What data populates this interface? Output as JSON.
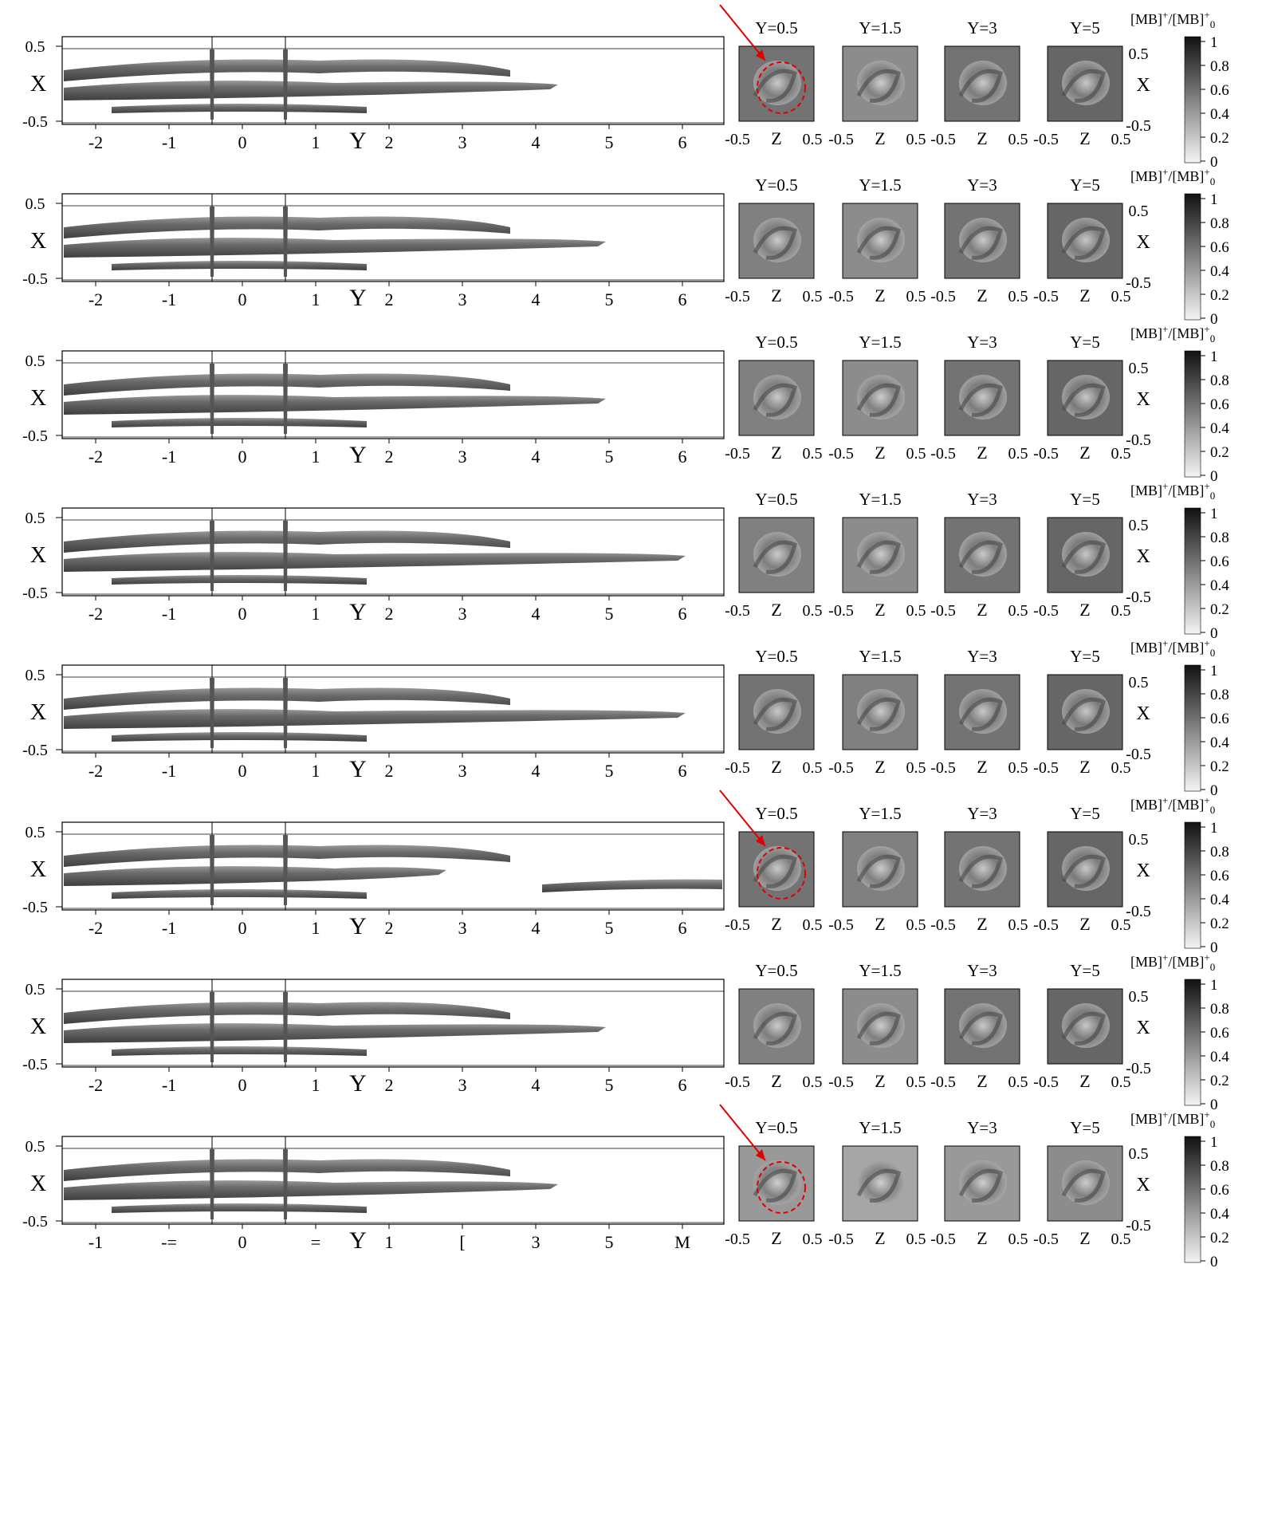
{
  "figure": {
    "row_panel_axis": {
      "x_axis_label": "Y",
      "y_axis_label": "X",
      "y_ticks": [
        "0.5",
        "-0.5"
      ]
    },
    "slices": {
      "x_axis_label": "Z",
      "x_ticks": [
        "-0.5",
        "0.5"
      ],
      "right_axis_label": "X",
      "right_ticks": [
        "0.5",
        "-0.5"
      ],
      "titles": [
        "Y=0.5",
        "Y=1.5",
        "Y=3",
        "Y=5"
      ]
    },
    "colorbar": {
      "ticks": [
        "1",
        "0.8",
        "0.6",
        "0.4",
        "0.2",
        "0"
      ],
      "label_parts": {
        "a": "[MB]",
        "sup_a": "+",
        "slash": "/[MB]",
        "sup_b": "+",
        "sub_b": "0"
      }
    },
    "row_x_ticks": {
      "standard": [
        "-2",
        "-1",
        "0",
        "1",
        "2",
        "3",
        "4",
        "5",
        "6"
      ],
      "last": [
        "-1",
        "-=",
        "0",
        "=",
        "1",
        "[",
        "3",
        "5",
        "M"
      ]
    },
    "annotations": {
      "arrow_color": "#e00000",
      "circle_color": "#e00000"
    },
    "rows": [
      {
        "id": "row-1",
        "extent": "short",
        "slice_gray": [
          0.55,
          0.45,
          0.55,
          0.6
        ],
        "arrow": true
      },
      {
        "id": "row-2",
        "extent": "medium",
        "slice_gray": [
          0.5,
          0.45,
          0.55,
          0.6
        ]
      },
      {
        "id": "row-3",
        "extent": "medium",
        "slice_gray": [
          0.5,
          0.45,
          0.55,
          0.6
        ]
      },
      {
        "id": "row-4",
        "extent": "long",
        "slice_gray": [
          0.5,
          0.45,
          0.55,
          0.6
        ]
      },
      {
        "id": "row-5",
        "extent": "long",
        "slice_gray": [
          0.55,
          0.5,
          0.55,
          0.6
        ]
      },
      {
        "id": "row-6",
        "extent": "split",
        "slice_gray": [
          0.55,
          0.5,
          0.55,
          0.6
        ],
        "arrow": true
      },
      {
        "id": "row-7",
        "extent": "medium",
        "slice_gray": [
          0.5,
          0.45,
          0.55,
          0.6
        ]
      },
      {
        "id": "row-8",
        "extent": "short",
        "slice_gray": [
          0.4,
          0.35,
          0.4,
          0.45
        ],
        "arrow": true,
        "last": true
      }
    ]
  }
}
